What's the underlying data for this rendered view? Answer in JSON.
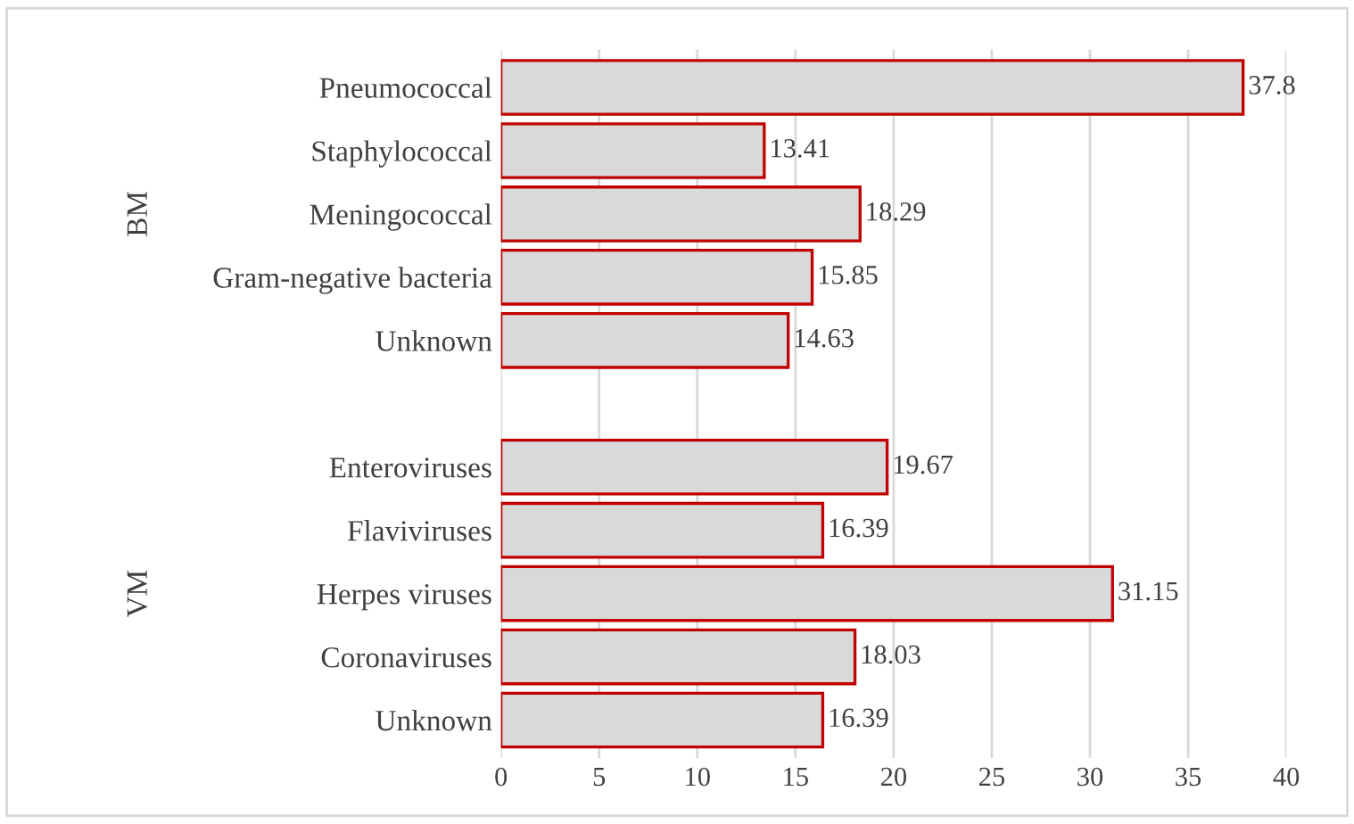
{
  "chart_data": {
    "type": "bar",
    "orientation": "horizontal",
    "categories": [
      "Pneumococcal",
      "Staphylococcal",
      "Meningococcal",
      "Gram-negative bacteria",
      "Unknown",
      null,
      "Enteroviruses",
      "Flaviviruses",
      "Herpes viruses",
      "Coronaviruses",
      "Unknown"
    ],
    "values": [
      37.8,
      13.41,
      18.29,
      15.85,
      14.63,
      null,
      19.67,
      16.39,
      31.15,
      18.03,
      16.39
    ],
    "color": "#d9d9d9",
    "annotations": [
      "BM",
      "VM"
    ],
    "xlim": [
      0,
      40
    ],
    "xticks": [
      0,
      5,
      10,
      15,
      20,
      25,
      30,
      35,
      40
    ],
    "grid": "x",
    "data_labels": true
  }
}
